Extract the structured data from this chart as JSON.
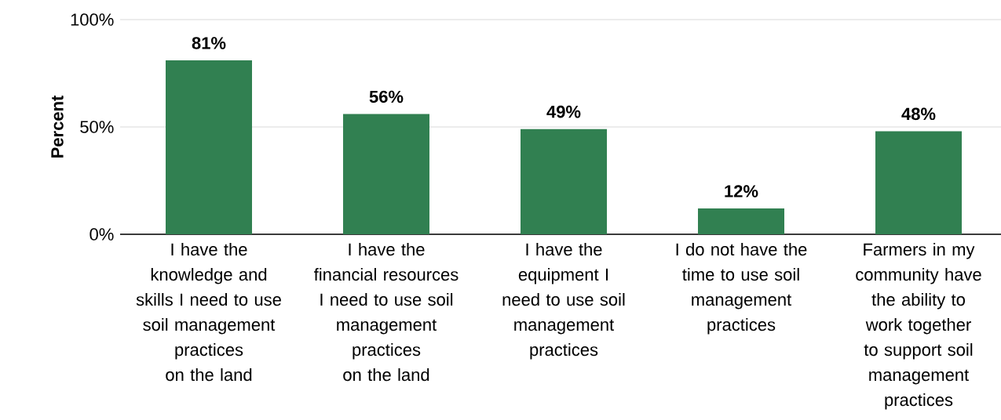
{
  "chart_data": {
    "type": "bar",
    "ylabel": "Percent",
    "categories": [
      "I have the knowledge and skills I need to use soil management practices on the land",
      "I have the financial resources I need to use soil management practices on the land",
      "I have the equipment I need to use soil management practices",
      "I do not have the time to use soil management practices",
      "Farmers in my community have the ability to work together to support soil management practices"
    ],
    "values": [
      81,
      56,
      49,
      12,
      48
    ],
    "value_labels": [
      "81%",
      "56%",
      "49%",
      "12%",
      "48%"
    ],
    "color": "#318051",
    "ylim": [
      0,
      100
    ],
    "yticks": [
      {
        "value": 0,
        "label": "0%"
      },
      {
        "value": 50,
        "label": "50%"
      },
      {
        "value": 100,
        "label": "100%"
      }
    ],
    "grid": "y"
  }
}
